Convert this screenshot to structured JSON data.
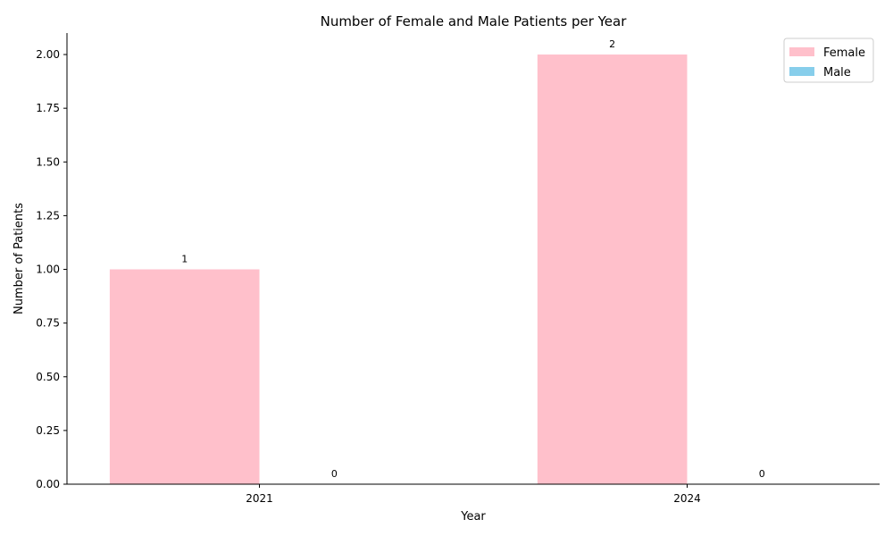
{
  "chart_data": {
    "type": "bar",
    "title": "Number of Female and Male Patients per Year",
    "xlabel": "Year",
    "ylabel": "Number of Patients",
    "categories": [
      "2021",
      "2024"
    ],
    "series": [
      {
        "name": "Female",
        "color": "#ffc0cb",
        "values": [
          1,
          2
        ]
      },
      {
        "name": "Male",
        "color": "#87ceeb",
        "values": [
          0,
          0
        ]
      }
    ],
    "ylim": [
      0,
      2.1
    ],
    "yticks": [
      "0.00",
      "0.25",
      "0.50",
      "0.75",
      "1.00",
      "1.25",
      "1.50",
      "1.75",
      "2.00"
    ],
    "data_labels": [
      [
        "1",
        "2"
      ],
      [
        "0",
        "0"
      ]
    ],
    "grid": false,
    "legend": "top-right"
  }
}
